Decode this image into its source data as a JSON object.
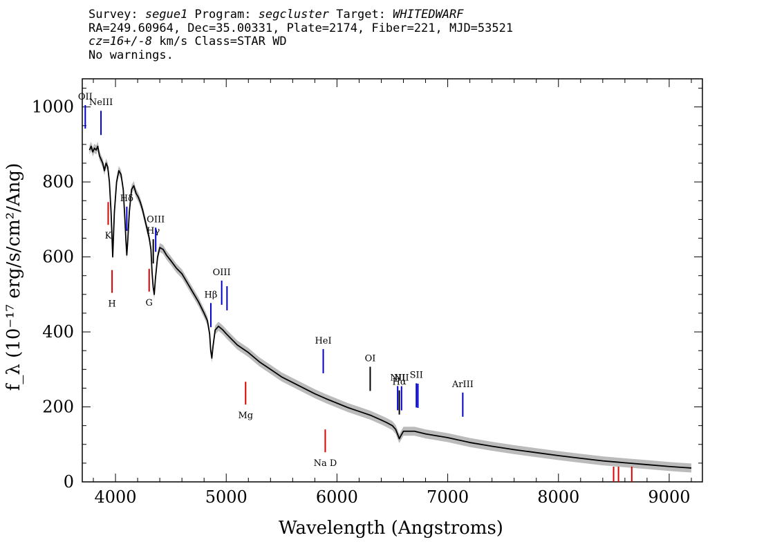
{
  "header": {
    "line1": {
      "survey_label": "Survey: ",
      "survey": "segue1",
      "program_label": " Program: ",
      "program": "segcluster",
      "target_label": " Target: ",
      "target": "WHITEDWARF"
    },
    "line2": "RA=249.60964, Dec=35.00331, Plate=2174, Fiber=221, MJD=53521",
    "line3": {
      "cz": "cz=16+/-8",
      "rest": " km/s Class=STAR WD"
    },
    "line4": "No warnings."
  },
  "chart_data": {
    "type": "line",
    "xlabel": "Wavelength (Angstroms)",
    "ylabel": "f_λ (10⁻¹⁷ erg/s/cm²/Ang)",
    "xlim": [
      3700,
      9300
    ],
    "ylim": [
      0,
      1075
    ],
    "xticks": [
      4000,
      5000,
      6000,
      7000,
      8000,
      9000
    ],
    "yticks": [
      0,
      200,
      400,
      600,
      800,
      1000
    ],
    "series": [
      {
        "color": "#000000",
        "error_color": "#aaaaaa",
        "x": [
          3765,
          3780,
          3795,
          3810,
          3825,
          3840,
          3855,
          3870,
          3885,
          3900,
          3915,
          3930,
          3945,
          3960,
          3975,
          3990,
          4010,
          4030,
          4050,
          4070,
          4085,
          4095,
          4102,
          4110,
          4125,
          4145,
          4165,
          4185,
          4205,
          4225,
          4245,
          4265,
          4285,
          4305,
          4320,
          4330,
          4340,
          4350,
          4360,
          4380,
          4400,
          4430,
          4460,
          4500,
          4550,
          4600,
          4650,
          4700,
          4750,
          4800,
          4830,
          4850,
          4860,
          4870,
          4880,
          4900,
          4930,
          4970,
          5000,
          5050,
          5100,
          5200,
          5300,
          5400,
          5500,
          5600,
          5700,
          5800,
          5900,
          6000,
          6100,
          6200,
          6300,
          6400,
          6450,
          6500,
          6530,
          6550,
          6563,
          6575,
          6600,
          6650,
          6700,
          6800,
          7000,
          7200,
          7400,
          7600,
          7800,
          8000,
          8200,
          8400,
          8600,
          8800,
          9000,
          9100,
          9200
        ],
        "y": [
          885,
          895,
          880,
          890,
          885,
          895,
          870,
          860,
          850,
          830,
          850,
          840,
          800,
          720,
          600,
          720,
          800,
          830,
          820,
          780,
          700,
          640,
          605,
          640,
          720,
          780,
          790,
          770,
          760,
          745,
          725,
          700,
          675,
          650,
          620,
          560,
          520,
          500,
          540,
          600,
          625,
          620,
          605,
          590,
          570,
          555,
          530,
          505,
          480,
          450,
          430,
          395,
          350,
          330,
          360,
          405,
          415,
          405,
          395,
          380,
          365,
          345,
          320,
          300,
          280,
          265,
          250,
          235,
          222,
          210,
          198,
          188,
          178,
          165,
          158,
          150,
          140,
          125,
          115,
          122,
          135,
          135,
          135,
          128,
          118,
          105,
          95,
          86,
          78,
          70,
          63,
          56,
          51,
          46,
          41,
          39,
          37
        ]
      }
    ],
    "lines": [
      {
        "label": "OII",
        "x": 3727,
        "color": "blue"
      },
      {
        "label": "NeIII",
        "x": 3869,
        "color": "blue"
      },
      {
        "label": "Hδ",
        "x": 4102,
        "color": "blue"
      },
      {
        "label": "Hγ",
        "x": 4341,
        "color": "black"
      },
      {
        "label": "OIII",
        "x": 4363,
        "color": "blue"
      },
      {
        "label": "Hβ",
        "x": 4861,
        "color": "blue"
      },
      {
        "label": "OIII",
        "x": 4959,
        "color": "blue"
      },
      {
        "label": "",
        "x": 5007,
        "color": "blue"
      },
      {
        "label": "HeI",
        "x": 5876,
        "color": "blue"
      },
      {
        "label": "OI",
        "x": 6300,
        "color": "black"
      },
      {
        "label": "NII",
        "x": 6548,
        "color": "blue"
      },
      {
        "label": "Hα",
        "x": 6563,
        "color": "black"
      },
      {
        "label": "NII",
        "x": 6583,
        "color": "blue"
      },
      {
        "label": "SII",
        "x": 6717,
        "color": "blue"
      },
      {
        "label": "",
        "x": 6731,
        "color": "blue"
      },
      {
        "label": "ArIII",
        "x": 7136,
        "color": "blue"
      },
      {
        "label": "K",
        "x": 3934,
        "color": "red"
      },
      {
        "label": "H",
        "x": 3969,
        "color": "red"
      },
      {
        "label": "G",
        "x": 4304,
        "color": "red"
      },
      {
        "label": "Mg",
        "x": 5175,
        "color": "red"
      },
      {
        "label": "Na D",
        "x": 5894,
        "color": "red"
      },
      {
        "label": "",
        "x": 8498,
        "color": "red"
      },
      {
        "label": "",
        "x": 8542,
        "color": "red"
      },
      {
        "label": "",
        "x": 8662,
        "color": "red"
      }
    ]
  }
}
